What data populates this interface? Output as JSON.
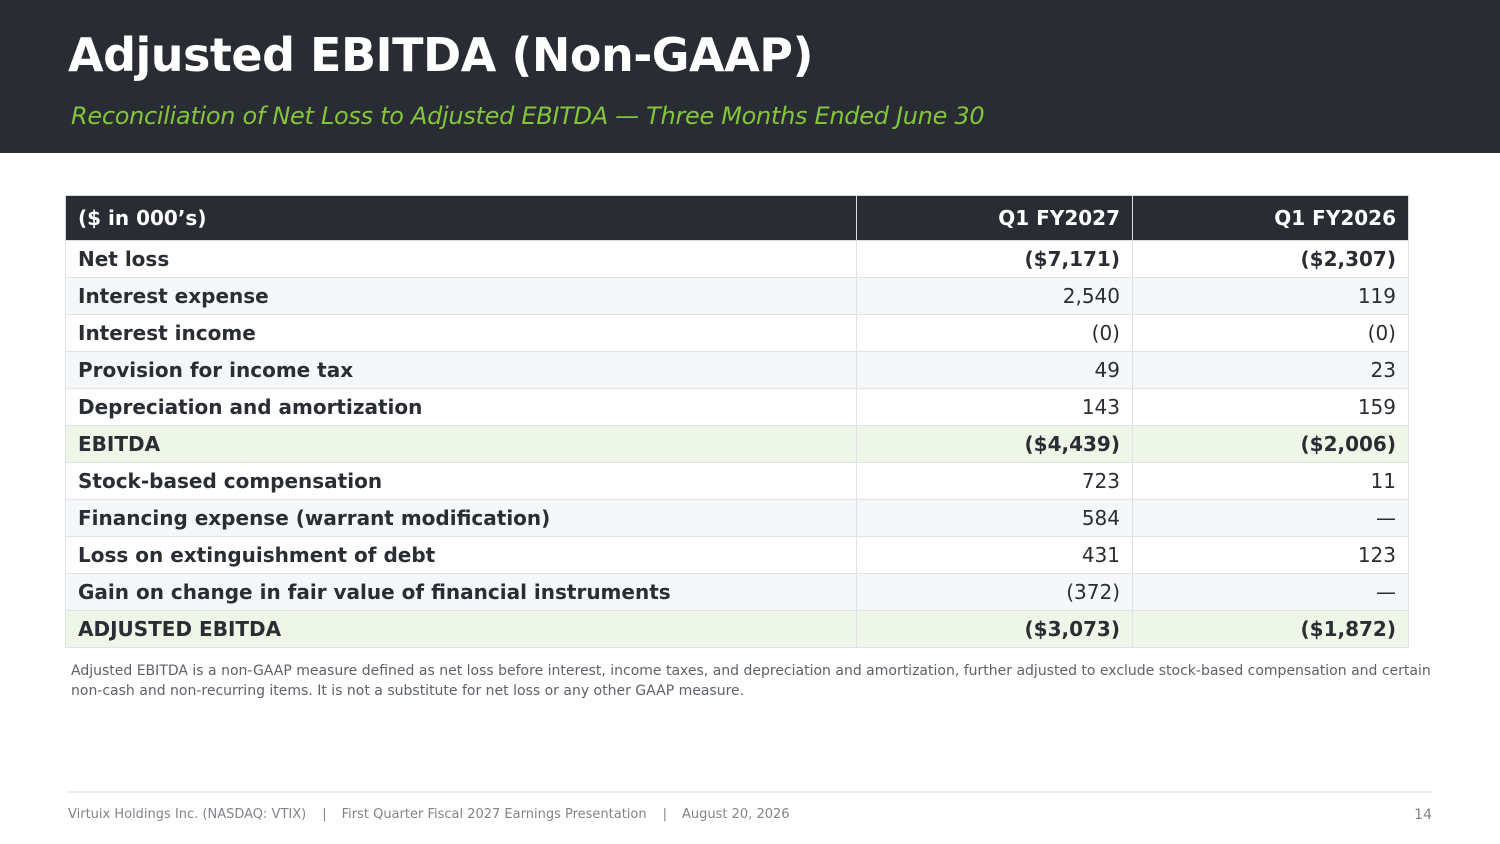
{
  "header": {
    "title": "Adjusted EBITDA (Non-GAAP)",
    "subtitle": "Reconciliation of Net Loss to Adjusted EBITDA — Three Months Ended June 30"
  },
  "table": {
    "columns": [
      "($ in 000’s)",
      "Q1 FY2027",
      "Q1 FY2026"
    ],
    "rows": [
      {
        "label": "Net loss",
        "q1_fy2027": "($7,171)",
        "q1_fy2026": "($2,307)"
      },
      {
        "label": "Interest expense",
        "q1_fy2027": "2,540",
        "q1_fy2026": "119"
      },
      {
        "label": "Interest income",
        "q1_fy2027": "(0)",
        "q1_fy2026": "(0)"
      },
      {
        "label": "Provision for income tax",
        "q1_fy2027": "49",
        "q1_fy2026": "23"
      },
      {
        "label": "Depreciation and amortization",
        "q1_fy2027": "143",
        "q1_fy2026": "159"
      },
      {
        "label": "EBITDA",
        "q1_fy2027": "($4,439)",
        "q1_fy2026": "($2,006)"
      },
      {
        "label": "Stock-based compensation",
        "q1_fy2027": "723",
        "q1_fy2026": "11"
      },
      {
        "label": "Financing expense (warrant modification)",
        "q1_fy2027": "584",
        "q1_fy2026": "—"
      },
      {
        "label": "Loss on extinguishment of debt",
        "q1_fy2027": "431",
        "q1_fy2026": "123"
      },
      {
        "label": "Gain on change in fair value of financial instruments",
        "q1_fy2027": "(372)",
        "q1_fy2026": "—"
      },
      {
        "label": "ADJUSTED EBITDA",
        "q1_fy2027": "($3,073)",
        "q1_fy2026": "($1,872)"
      }
    ]
  },
  "footnote": "Adjusted EBITDA is a non-GAAP measure defined as net loss before interest, income taxes, and depreciation and amortization, further adjusted to exclude stock-based compensation and certain non-cash and non-recurring items. It is not a substitute for net loss or any other GAAP measure.",
  "footer": {
    "company": "Virtuix Holdings Inc. (NASDAQ: VTIX)",
    "presentation": "First Quarter Fiscal 2027 Earnings Presentation",
    "date": "August 20, 2026",
    "separator": "|",
    "page_number": "14"
  },
  "colors": {
    "header_background": "#292c33",
    "accent_green": "#84c43c",
    "subtotal_row": "#eef6e8",
    "alternate_row": "#f6f7f9"
  }
}
